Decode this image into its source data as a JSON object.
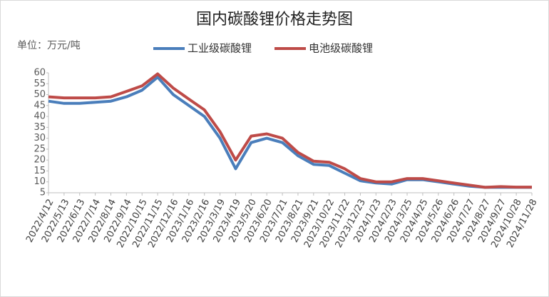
{
  "chart_data": {
    "type": "line",
    "title": "国内碳酸锂价格走势图",
    "y_label": "单位：万元/吨",
    "categories": [
      "2022/4/12",
      "2022/5/13",
      "2022/6/13",
      "2022/7/14",
      "2022/8/14",
      "2022/9/14",
      "2022/10/15",
      "2022/11/15",
      "2022/12/16",
      "2023/1/16",
      "2023/2/16",
      "2023/3/19",
      "2023/4/19",
      "2023/5/20",
      "2023/6/20",
      "2023/7/21",
      "2023/8/21",
      "2023/9/21",
      "2023/10/22",
      "2023/11/22",
      "2023/12/23",
      "2024/1/23",
      "2024/2/23",
      "2024/3/25",
      "2024/4/25",
      "2024/5/26",
      "2024/6/26",
      "2024/7/27",
      "2024/8/27",
      "2024/9/27",
      "2024/10/28",
      "2024/11/28"
    ],
    "series": [
      {
        "name": "工业级碳酸锂",
        "color": "#4a7ebb",
        "values": [
          47,
          46,
          46,
          46.5,
          47,
          49,
          52,
          58,
          50,
          45,
          40,
          30,
          16,
          28,
          30,
          28,
          22,
          18,
          17.5,
          14,
          10.5,
          9.5,
          9,
          11,
          11,
          10,
          9,
          8,
          7.5,
          7.5,
          7.5,
          7.5
        ]
      },
      {
        "name": "电池级碳酸锂",
        "color": "#be4b48",
        "values": [
          49,
          48.5,
          48.5,
          48.5,
          49,
          51.5,
          54,
          59.5,
          53,
          48,
          43,
          33,
          20,
          31,
          32,
          30,
          23.5,
          19.5,
          19,
          16,
          11.5,
          10,
          10,
          11.5,
          11.5,
          10.5,
          9.5,
          8.5,
          7.5,
          7.8,
          7.6,
          7.6
        ]
      }
    ],
    "ylim": [
      5,
      60
    ],
    "yticks": [
      5,
      10,
      15,
      20,
      25,
      30,
      35,
      40,
      45,
      50,
      55,
      60
    ]
  }
}
